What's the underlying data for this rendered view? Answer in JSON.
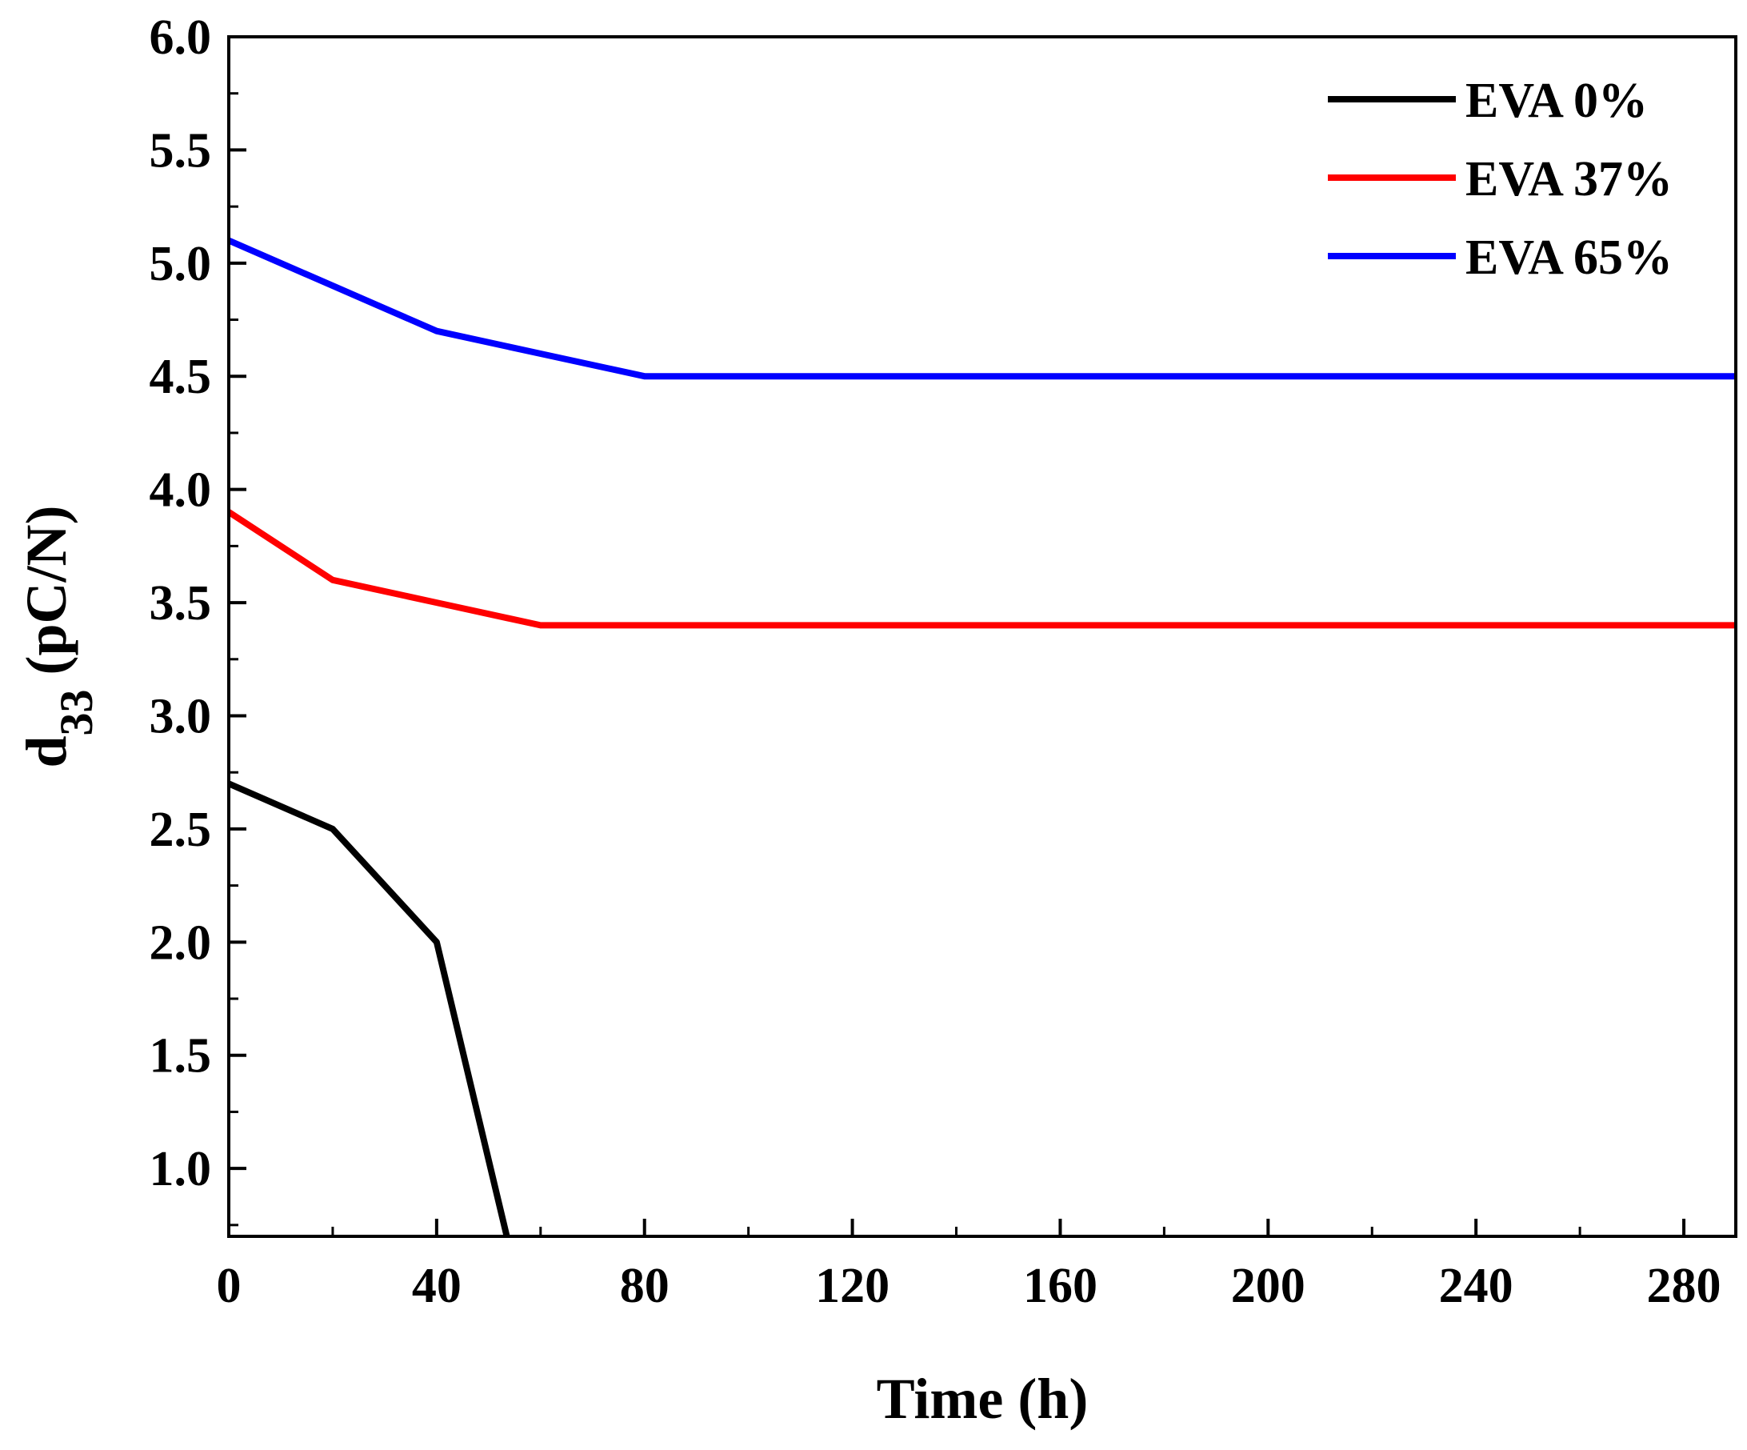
{
  "chart_data": {
    "type": "line",
    "title": "",
    "xlabel": "Time (h)",
    "ylabel": {
      "main": "d",
      "subscript": "33",
      "unit": " (pC/N)"
    },
    "xlim": [
      0,
      290
    ],
    "ylim": [
      0.7,
      6.0
    ],
    "x_ticks": [
      0,
      40,
      80,
      120,
      160,
      200,
      240,
      280
    ],
    "x_tick_labels": [
      "0",
      "40",
      "80",
      "120",
      "160",
      "200",
      "240",
      "280"
    ],
    "x_minor_step": 20,
    "y_ticks": [
      1.0,
      1.5,
      2.0,
      2.5,
      3.0,
      3.5,
      4.0,
      4.5,
      5.0,
      5.5,
      6.0
    ],
    "y_tick_labels": [
      "1.0",
      "1.5",
      "2.0",
      "2.5",
      "3.0",
      "3.5",
      "4.0",
      "4.5",
      "5.0",
      "5.5",
      "6.0"
    ],
    "y_minor_step": 0.25,
    "grid": false,
    "legend_position": "top-right",
    "series": [
      {
        "name": "EVA 0%",
        "color": "#000000",
        "x": [
          0,
          20,
          40,
          53.5
        ],
        "y": [
          2.7,
          2.5,
          2.0,
          0.7
        ]
      },
      {
        "name": "EVA 37%",
        "color": "#ff0000",
        "x": [
          0,
          20,
          40,
          60,
          80,
          120,
          160,
          200,
          240,
          280,
          290
        ],
        "y": [
          3.9,
          3.6,
          3.5,
          3.4,
          3.4,
          3.4,
          3.4,
          3.4,
          3.4,
          3.4,
          3.4
        ]
      },
      {
        "name": "EVA 65%",
        "color": "#0000ff",
        "x": [
          0,
          20,
          40,
          60,
          80,
          120,
          160,
          200,
          240,
          280,
          290
        ],
        "y": [
          5.1,
          4.9,
          4.7,
          4.6,
          4.5,
          4.5,
          4.5,
          4.5,
          4.5,
          4.5,
          4.5
        ]
      }
    ]
  }
}
